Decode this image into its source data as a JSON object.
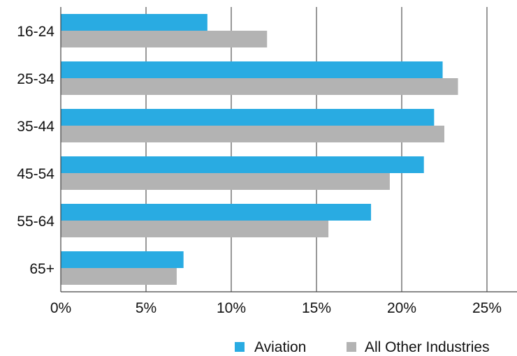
{
  "chart_data": {
    "type": "bar",
    "orientation": "horizontal",
    "categories": [
      "16-24",
      "25-34",
      "35-44",
      "45-54",
      "55-64",
      "65+"
    ],
    "series": [
      {
        "name": "Aviation",
        "color": "#29abe2",
        "values": [
          8.6,
          22.4,
          21.9,
          21.3,
          18.2,
          7.2
        ]
      },
      {
        "name": "All Other Industries",
        "color": "#b3b3b3",
        "values": [
          12.1,
          23.3,
          22.5,
          19.3,
          15.7,
          6.8
        ]
      }
    ],
    "xlim": [
      0,
      25
    ],
    "x_ticks": [
      "0%",
      "5%",
      "10%",
      "15%",
      "20%",
      "25%"
    ],
    "grid": "vertical",
    "legend_position": "bottom-right"
  }
}
